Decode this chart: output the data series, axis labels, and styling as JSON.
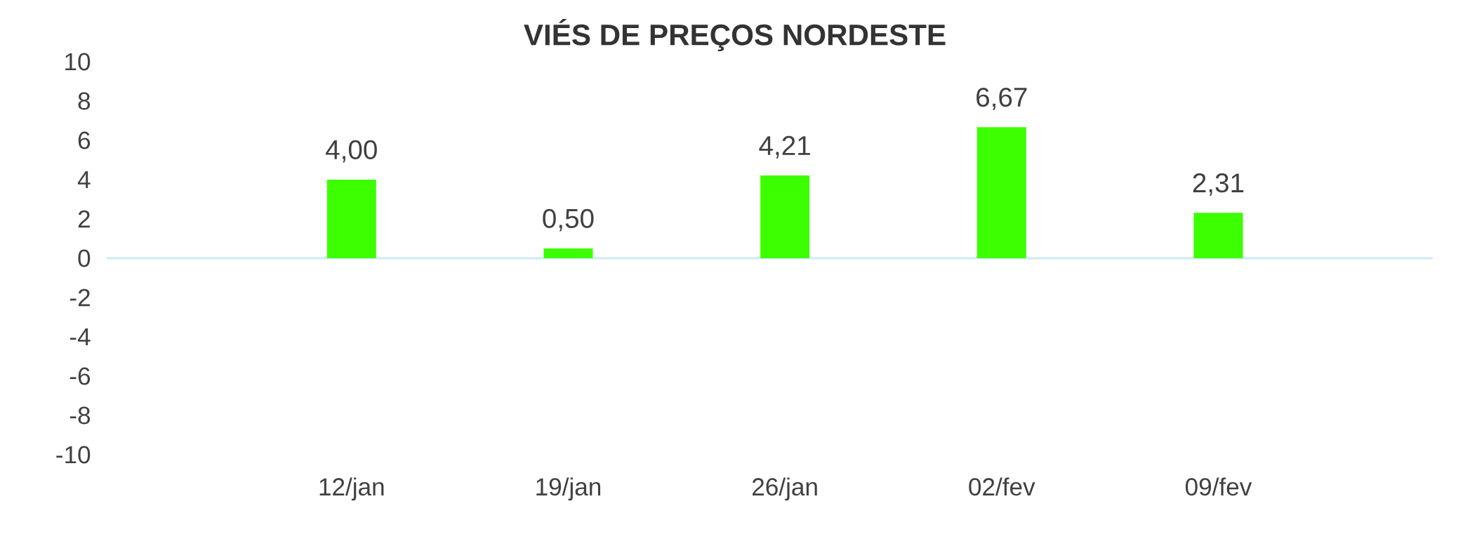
{
  "chart_data": {
    "type": "bar",
    "title": "VIÉS DE PREÇOS NORDESTE",
    "categories": [
      "12/jan",
      "19/jan",
      "26/jan",
      "02/fev",
      "09/fev"
    ],
    "values": [
      4.0,
      0.5,
      4.21,
      6.67,
      2.31
    ],
    "value_labels": [
      "4,00",
      "0,50",
      "4,21",
      "6,67",
      "2,31"
    ],
    "color": "#3cff00",
    "ylim": [
      -10,
      10
    ],
    "yticks": [
      -10,
      -8,
      -6,
      -4,
      -2,
      0,
      2,
      4,
      6,
      8,
      10
    ]
  }
}
